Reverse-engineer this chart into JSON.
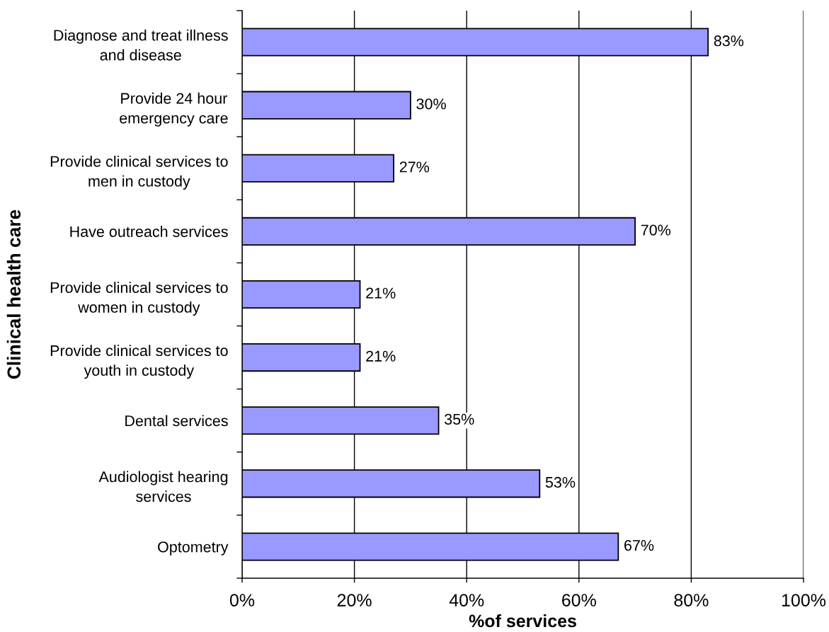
{
  "chart_data": {
    "type": "bar",
    "orientation": "horizontal",
    "xlabel": "%of services",
    "ylabel": "Clinical health care",
    "categories": [
      "Diagnose and treat illness\nand disease",
      "Provide 24 hour\nemergency care",
      "Provide clinical services to\nmen in custody",
      "Have outreach services",
      "Provide clinical services to\nwomen in custody",
      "Provide clinical services to\nyouth in custody",
      "Dental services",
      "Audiologist hearing\nservices",
      "Optometry"
    ],
    "values": [
      83,
      30,
      27,
      70,
      21,
      21,
      35,
      53,
      67
    ],
    "value_labels": [
      "83%",
      "30%",
      "27%",
      "70%",
      "21%",
      "21%",
      "35%",
      "53%",
      "67%"
    ],
    "color": "#9999ff",
    "xlim": [
      0,
      100
    ],
    "xticks": [
      {
        "value": 0,
        "label": "0%"
      },
      {
        "value": 20,
        "label": "20%"
      },
      {
        "value": 40,
        "label": "40%"
      },
      {
        "value": 60,
        "label": "60%"
      },
      {
        "value": 80,
        "label": "80%"
      },
      {
        "value": 100,
        "label": "100%"
      }
    ],
    "grid": "x",
    "legend": false
  }
}
